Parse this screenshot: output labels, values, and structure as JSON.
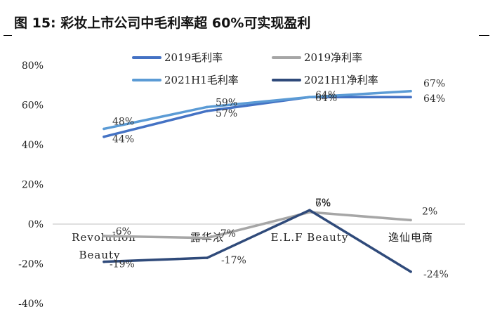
{
  "title": "图 15: 彩妆上市公司中毛利率超 60%可实现盈利",
  "chart_data": {
    "type": "line",
    "categories": [
      "Revolution Beauty",
      "露华浓",
      "E.L.F Beauty",
      "逸仙电商"
    ],
    "category_labels": [
      [
        "Revolution",
        "Beauty"
      ],
      [
        "露华浓"
      ],
      [
        "E.L.F Beauty"
      ],
      [
        "逸仙电商"
      ]
    ],
    "ylim": [
      -40,
      80
    ],
    "yticks": [
      -40,
      -20,
      0,
      20,
      40,
      60,
      80
    ],
    "ytick_suffix": "%",
    "legend_position": "top",
    "series": [
      {
        "name": "2019毛利率",
        "values": [
          44,
          57,
          64,
          64
        ],
        "labels": [
          "44%",
          "57%",
          "64%",
          "64%"
        ],
        "color": "#4472C4"
      },
      {
        "name": "2019净利率",
        "values": [
          -6,
          -7,
          6,
          2
        ],
        "labels": [
          "-6%",
          "-7%",
          "6%",
          "2%"
        ],
        "color": "#A6A6A6"
      },
      {
        "name": "2021H1毛利率",
        "values": [
          48,
          59,
          64,
          67
        ],
        "labels": [
          "48%",
          "59%",
          "64%",
          "67%"
        ],
        "color": "#5B9BD5"
      },
      {
        "name": "2021H1净利率",
        "values": [
          -19,
          -17,
          7,
          -24
        ],
        "labels": [
          "-19%",
          "-17%",
          "7%",
          "-24%"
        ],
        "color": "#2F4A7A"
      }
    ]
  }
}
